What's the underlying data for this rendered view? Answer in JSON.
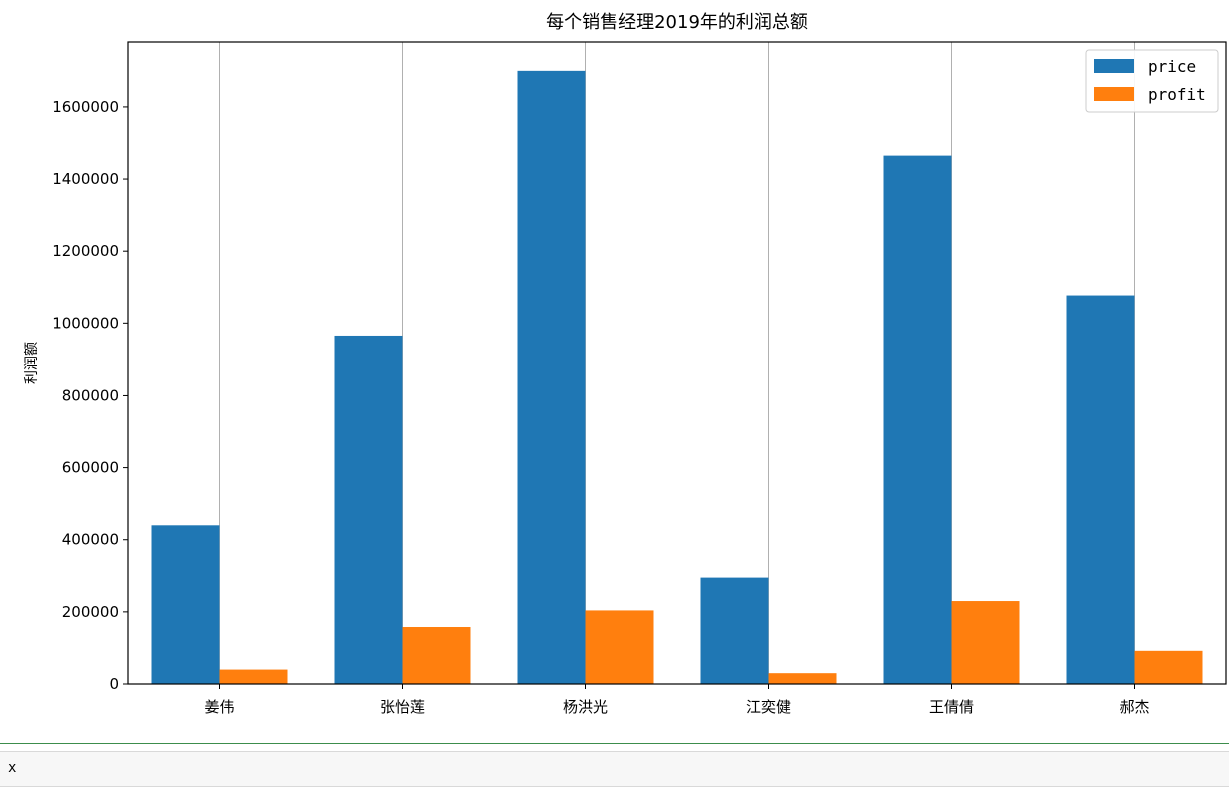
{
  "chart_data": {
    "type": "bar",
    "title": "每个销售经理2019年的利润总额",
    "xlabel": "",
    "ylabel": "利润额",
    "categories": [
      "姜伟",
      "张怡莲",
      "杨洪光",
      "江奕健",
      "王倩倩",
      "郝杰"
    ],
    "series": [
      {
        "name": "price",
        "color": "#1f77b4",
        "values": [
          440000,
          965000,
          1700000,
          295000,
          1465000,
          1077000
        ]
      },
      {
        "name": "profit",
        "color": "#ff7f0e",
        "values": [
          40000,
          158000,
          204000,
          30000,
          230000,
          92000
        ]
      }
    ],
    "ylim": [
      0,
      1780000
    ],
    "yticks": [
      0,
      200000,
      400000,
      600000,
      800000,
      1000000,
      1200000,
      1400000,
      1600000
    ],
    "grid": "vertical at category centers",
    "legend": "top-right"
  },
  "cell": {
    "text": "x"
  }
}
